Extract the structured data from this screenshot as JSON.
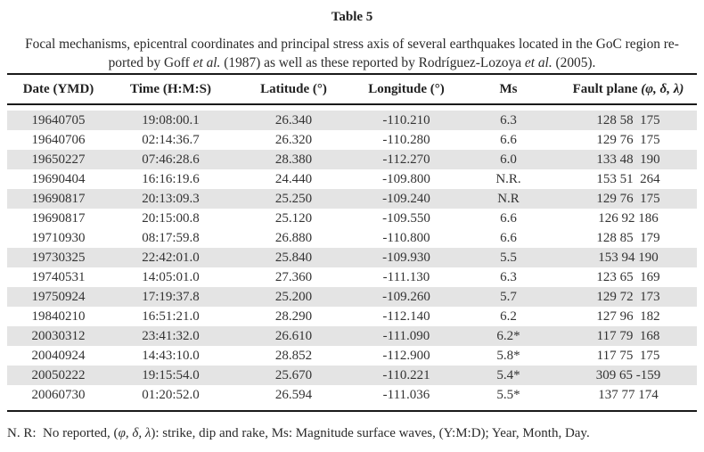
{
  "page": {
    "title": "Table 5",
    "caption": {
      "line1": "Focal mechanisms, epicentral coordinates and principal stress axis of several earthquakes located in the GoC region re-",
      "line2_part1": "ported by Goff ",
      "line2_italic1": "et al.",
      "line2_part2": " (1987) as well as these reported by Rodríguez-Lozoya ",
      "line2_italic2": "et al.",
      "line2_part3": " (2005)."
    },
    "footnote": {
      "part1": "N. R:  No reported, (",
      "italic": "φ, δ, λ",
      "part2": "): strike, dip and rake, Ms: Magnitude surface waves, (Y:M:D); Year, Month, Day."
    }
  },
  "table": {
    "headers": {
      "date": "Date (YMD)",
      "time": "Time (H:M:S)",
      "latitude": "Latitude (°)",
      "longitude": "Longitude (°)",
      "ms": "Ms",
      "fault_plane_label": "Fault plane ",
      "fault_plane_symbols": "(φ, δ, λ)"
    },
    "rows": [
      {
        "date": "19640705",
        "time": "19:08:00.1",
        "latitude": "26.340",
        "longitude": "-110.210",
        "ms": "6.3",
        "fault_plane": "128 58  175",
        "shaded": true
      },
      {
        "date": "19640706",
        "time": "02:14:36.7",
        "latitude": "26.320",
        "longitude": "-110.280",
        "ms": "6.6",
        "fault_plane": "129 76  175",
        "shaded": false
      },
      {
        "date": "19650227",
        "time": "07:46:28.6",
        "latitude": "28.380",
        "longitude": "-112.270",
        "ms": "6.0",
        "fault_plane": "133 48  190",
        "shaded": true
      },
      {
        "date": "19690404",
        "time": "16:16:19.6",
        "latitude": "24.440",
        "longitude": "-109.800",
        "ms": "N.R.",
        "fault_plane": "153 51  264",
        "shaded": false
      },
      {
        "date": "19690817",
        "time": "20:13:09.3",
        "latitude": "25.250",
        "longitude": "-109.240",
        "ms": "N.R",
        "fault_plane": "129 76  175",
        "shaded": true
      },
      {
        "date": "19690817",
        "time": "20:15:00.8",
        "latitude": "25.120",
        "longitude": "-109.550",
        "ms": "6.6",
        "fault_plane": "126 92 186",
        "shaded": false
      },
      {
        "date": "19710930",
        "time": "08:17:59.8",
        "latitude": "26.880",
        "longitude": "-110.800",
        "ms": "6.6",
        "fault_plane": "128 85  179",
        "shaded": false
      },
      {
        "date": "19730325",
        "time": "22:42:01.0",
        "latitude": "25.840",
        "longitude": "-109.930",
        "ms": "5.5",
        "fault_plane": "153 94 190",
        "shaded": true
      },
      {
        "date": "19740531",
        "time": "14:05:01.0",
        "latitude": "27.360",
        "longitude": "-111.130",
        "ms": "6.3",
        "fault_plane": "123 65  169",
        "shaded": false
      },
      {
        "date": "19750924",
        "time": "17:19:37.8",
        "latitude": "25.200",
        "longitude": "-109.260",
        "ms": "5.7",
        "fault_plane": "129 72  173",
        "shaded": true
      },
      {
        "date": "19840210",
        "time": "16:51:21.0",
        "latitude": "28.290",
        "longitude": "-112.140",
        "ms": "6.2",
        "fault_plane": "127 96  182",
        "shaded": false
      },
      {
        "date": "20030312",
        "time": "23:41:32.0",
        "latitude": "26.610",
        "longitude": "-111.090",
        "ms": "6.2*",
        "fault_plane": "117 79  168",
        "shaded": true
      },
      {
        "date": "20040924",
        "time": "14:43:10.0",
        "latitude": "28.852",
        "longitude": "-112.900",
        "ms": "5.8*",
        "fault_plane": "117 75  175",
        "shaded": false
      },
      {
        "date": "20050222",
        "time": "19:15:54.0",
        "latitude": "25.670",
        "longitude": "-110.221",
        "ms": "5.4*",
        "fault_plane": "309 65 -159",
        "shaded": true
      },
      {
        "date": "20060730",
        "time": "01:20:52.0",
        "latitude": "26.594",
        "longitude": "-111.036",
        "ms": "5.5*",
        "fault_plane": "137 77 174",
        "shaded": false
      }
    ]
  },
  "colors": {
    "row_shade": "#e4e4e4",
    "rule": "#1a1a1a",
    "text": "#2f2f2f"
  }
}
